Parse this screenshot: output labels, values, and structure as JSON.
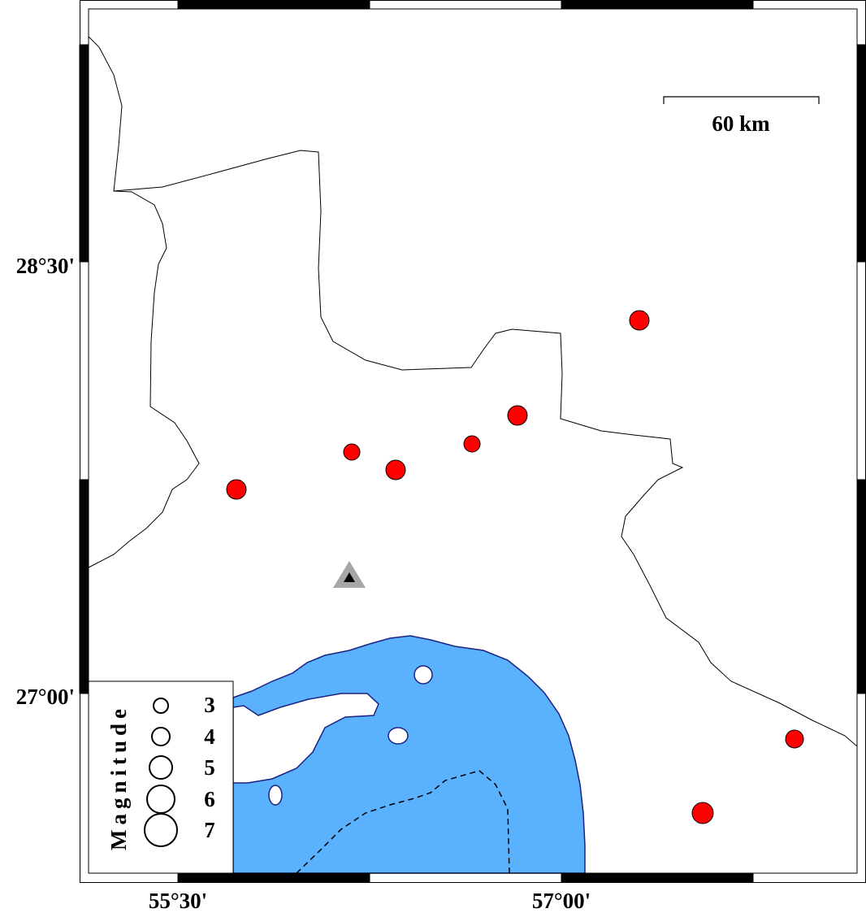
{
  "map": {
    "scale_bar_label": "60 km",
    "lat_labels": [
      "28°30'",
      "27°00'"
    ],
    "lon_labels": [
      "55°30'",
      "57°00'"
    ],
    "colors": {
      "water": "#5ab1fd",
      "coast": "#1a237e",
      "event": "#ff0000",
      "station": "#a6a6a6"
    },
    "events": [
      {
        "magnitude": 5.0
      },
      {
        "magnitude": 5.0
      },
      {
        "magnitude": 4.0
      },
      {
        "magnitude": 5.0
      },
      {
        "magnitude": 4.0
      },
      {
        "magnitude": 5.0
      },
      {
        "magnitude": 4.5
      },
      {
        "magnitude": 5.5
      }
    ],
    "station_icon": "triangle-icon"
  },
  "legend": {
    "title": "Magnitude",
    "entries": [
      "3",
      "4",
      "5",
      "6",
      "7"
    ]
  }
}
